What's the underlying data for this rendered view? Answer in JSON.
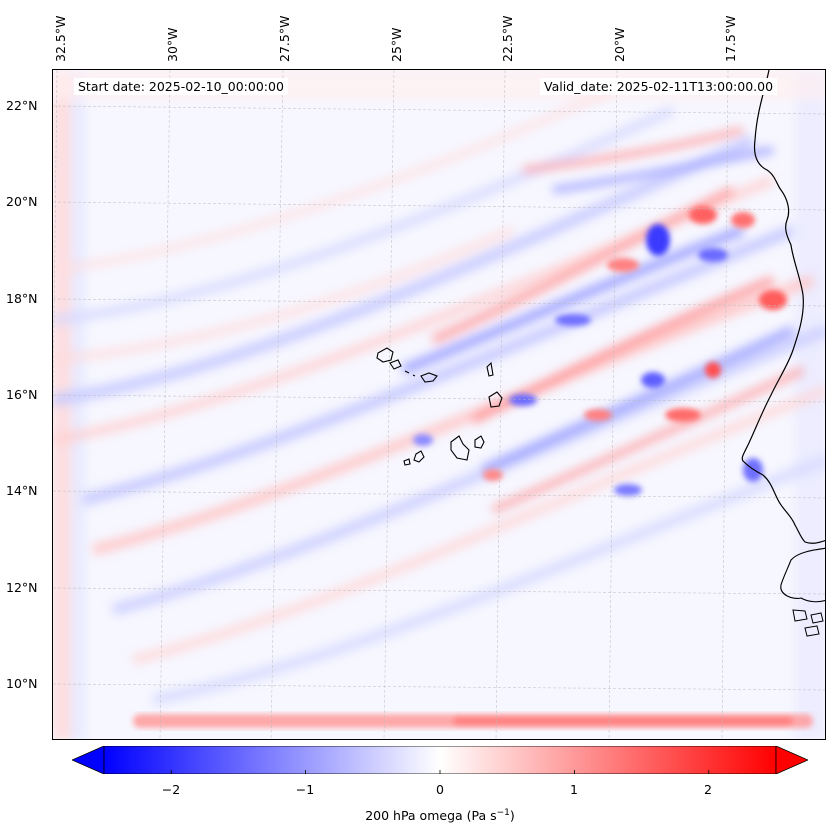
{
  "map": {
    "start_date": "Start date: 2025-02-10_00:00:00",
    "valid_date": "Valid_date: 2025-02-11T13:00:00.00",
    "longitude_labels": [
      "32.5°W",
      "30°W",
      "27.5°W",
      "25°W",
      "22.5°W",
      "20°W",
      "17.5°W"
    ],
    "latitude_labels": [
      "22°N",
      "20°N",
      "18°N",
      "16°N",
      "14°N",
      "12°N",
      "10°N"
    ],
    "extent": {
      "lon_min": -33.0,
      "lon_max": -15.8,
      "lat_min": 8.9,
      "lat_max": 22.8
    },
    "gridlines": true,
    "field": "200 hPa omega",
    "colormap": {
      "low": "#0000ff",
      "mid": "#ffffff",
      "high": "#ff0000"
    }
  },
  "colorbar": {
    "ticks": [
      "−2",
      "−1",
      "0",
      "1",
      "2"
    ],
    "tick_values": [
      -2,
      -1,
      0,
      1,
      2
    ],
    "range": [
      -2.5,
      2.5
    ],
    "label": "200 hPa omega (Pa s",
    "label_sup": "−1",
    "label_end": ")",
    "extend": "both"
  }
}
